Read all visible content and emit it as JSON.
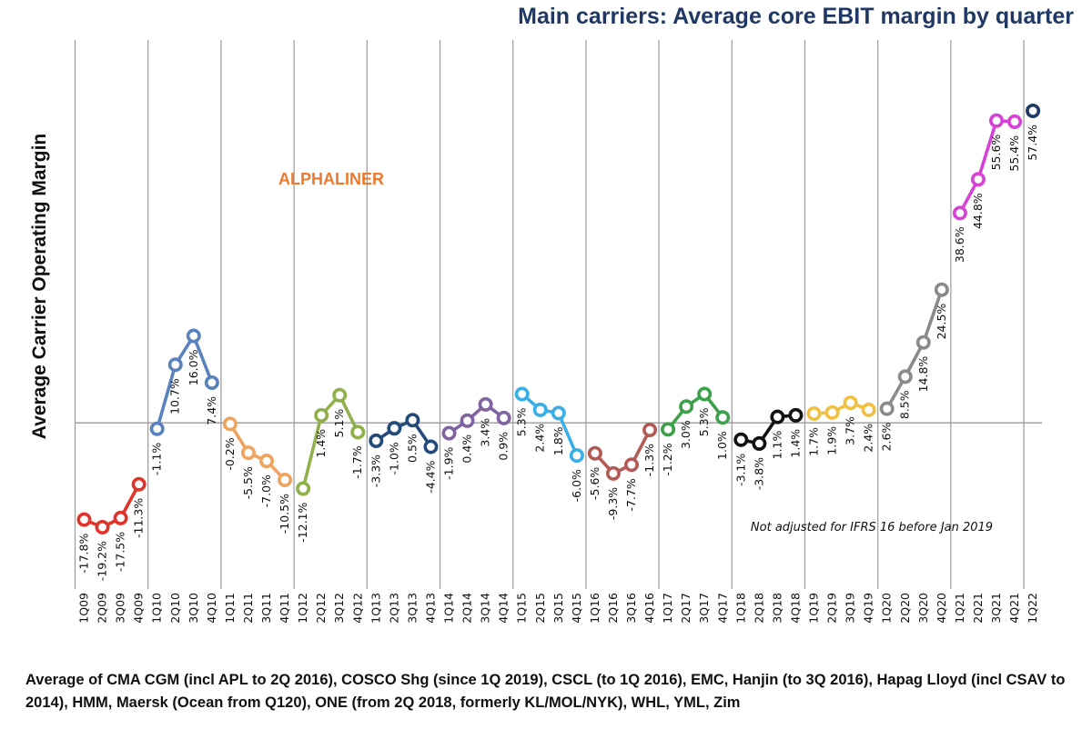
{
  "chart_data": {
    "type": "line",
    "title": "Main carriers: Average core EBIT margin by quarter",
    "ylabel": "Average Carrier Operating Margin",
    "xlabel": "",
    "watermark": "ALPHALINER",
    "note": "Not adjusted for IFRS 16 before Jan 2019",
    "ylim": [
      -30,
      63
    ],
    "categories": [
      "1Q09",
      "2Q09",
      "3Q09",
      "4Q09",
      "1Q10",
      "2Q10",
      "3Q10",
      "4Q10",
      "1Q11",
      "2Q11",
      "3Q11",
      "4Q11",
      "1Q12",
      "2Q12",
      "3Q12",
      "4Q12",
      "1Q13",
      "2Q13",
      "3Q13",
      "4Q13",
      "1Q14",
      "2Q14",
      "3Q14",
      "4Q14",
      "1Q15",
      "2Q15",
      "3Q15",
      "4Q15",
      "1Q16",
      "2Q16",
      "3Q16",
      "4Q16",
      "1Q17",
      "2Q17",
      "3Q17",
      "4Q17",
      "1Q18",
      "2Q18",
      "3Q18",
      "4Q18",
      "1Q19",
      "2Q19",
      "3Q19",
      "4Q19",
      "1Q20",
      "2Q20",
      "3Q20",
      "4Q20",
      "1Q21",
      "2Q21",
      "3Q21",
      "4Q21",
      "1Q22"
    ],
    "series": [
      {
        "color": "#e0342a",
        "x": [
          "1Q09",
          "2Q09",
          "3Q09",
          "4Q09"
        ],
        "values": [
          -17.8,
          -19.2,
          -17.5,
          -11.3
        ],
        "labels": [
          "-17.8%",
          "-19.2%",
          "-17.5%",
          "-11.3%"
        ]
      },
      {
        "color": "#5a82be",
        "x": [
          "1Q10",
          "2Q10",
          "3Q10",
          "4Q10"
        ],
        "values": [
          -1.1,
          10.7,
          16.0,
          7.4
        ],
        "labels": [
          "-1.1%",
          "10.7%",
          "16.0%",
          "7.4%"
        ]
      },
      {
        "color": "#f0a35c",
        "x": [
          "1Q11",
          "2Q11",
          "3Q11",
          "4Q11"
        ],
        "values": [
          -0.2,
          -5.5,
          -7.0,
          -10.5
        ],
        "labels": [
          "-0.2%",
          "-5.5%",
          "-7.0%",
          "-10.5%"
        ]
      },
      {
        "color": "#8fb04a",
        "x": [
          "1Q12",
          "2Q12",
          "3Q12",
          "4Q12"
        ],
        "values": [
          -12.1,
          1.4,
          5.1,
          -1.7
        ],
        "labels": [
          "-12.1%",
          "1.4%",
          "5.1%",
          "-1.7%"
        ]
      },
      {
        "color": "#244a7a",
        "x": [
          "1Q13",
          "2Q13",
          "3Q13",
          "4Q13"
        ],
        "values": [
          -3.3,
          -1.0,
          0.5,
          -4.4
        ],
        "labels": [
          "-3.3%",
          "-1.0%",
          "0.5%",
          "-4.4%"
        ]
      },
      {
        "color": "#8064a2",
        "x": [
          "1Q14",
          "2Q14",
          "3Q14",
          "4Q14"
        ],
        "values": [
          -1.9,
          0.4,
          3.4,
          0.9
        ],
        "labels": [
          "-1.9%",
          "0.4%",
          "3.4%",
          "0.9%"
        ]
      },
      {
        "color": "#3aaee6",
        "x": [
          "1Q15",
          "2Q15",
          "3Q15",
          "4Q15"
        ],
        "values": [
          5.3,
          2.4,
          1.8,
          -6.0
        ],
        "labels": [
          "5.3%",
          "2.4%",
          "1.8%",
          "-6.0%"
        ]
      },
      {
        "color": "#b35a55",
        "x": [
          "1Q16",
          "2Q16",
          "3Q16",
          "4Q16"
        ],
        "values": [
          -5.6,
          -9.3,
          -7.7,
          -1.3
        ],
        "labels": [
          "-5.6%",
          "-9.3%",
          "-7.7%",
          "-1.3%"
        ]
      },
      {
        "color": "#3da04a",
        "x": [
          "1Q17",
          "2Q17",
          "3Q17",
          "4Q17"
        ],
        "values": [
          -1.2,
          3.0,
          5.3,
          1.0
        ],
        "labels": [
          "-1.2%",
          "3.0%",
          "5.3%",
          "1.0%"
        ]
      },
      {
        "color": "#111111",
        "x": [
          "1Q18",
          "2Q18",
          "3Q18",
          "4Q18"
        ],
        "values": [
          -3.1,
          -3.8,
          1.1,
          1.4
        ],
        "labels": [
          "-3.1%",
          "-3.8%",
          "1.1%",
          "1.4%"
        ]
      },
      {
        "color": "#f2c03e",
        "x": [
          "1Q19",
          "2Q19",
          "3Q19",
          "4Q19"
        ],
        "values": [
          1.7,
          1.9,
          3.7,
          2.4
        ],
        "labels": [
          "1.7%",
          "1.9%",
          "3.7%",
          "2.4%"
        ]
      },
      {
        "color": "#8a8a8a",
        "x": [
          "1Q20",
          "2Q20",
          "3Q20",
          "4Q20"
        ],
        "values": [
          2.6,
          8.5,
          14.8,
          24.5
        ],
        "labels": [
          "2.6%",
          "8.5%",
          "14.8%",
          "24.5%"
        ]
      },
      {
        "color": "#d641d6",
        "x": [
          "1Q21",
          "2Q21",
          "3Q21",
          "4Q21"
        ],
        "values": [
          38.6,
          44.8,
          55.6,
          55.4
        ],
        "labels": [
          "38.6%",
          "44.8%",
          "55.6%",
          "55.4%"
        ]
      },
      {
        "color": "#1f3864",
        "x": [
          "1Q22"
        ],
        "values": [
          57.4
        ],
        "labels": [
          "57.4%"
        ]
      }
    ]
  },
  "footnote": "Average of CMA CGM (incl APL to 2Q 2016), COSCO Shg (since 1Q 2019), CSCL (to 1Q 2016), EMC, Hanjin (to 3Q 2016), Hapag Lloyd (incl CSAV to 2014), HMM,  Maersk (Ocean from Q120), ONE (from 2Q 2018, formerly KL/MOL/NYK), WHL, YML, Zim"
}
